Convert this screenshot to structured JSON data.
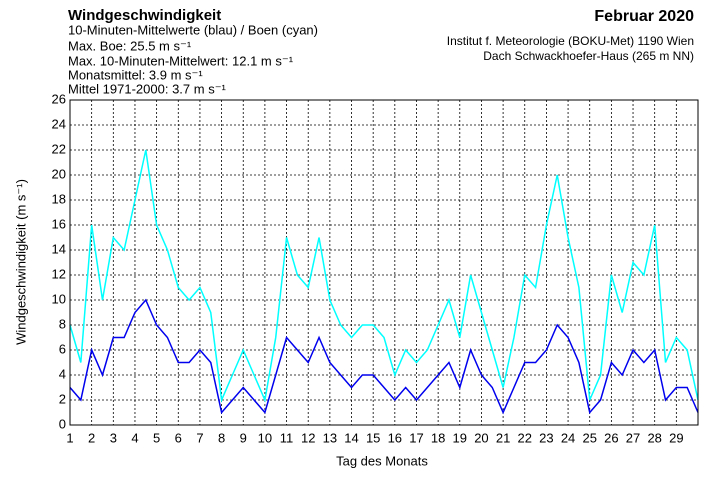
{
  "chart_data": {
    "type": "line",
    "title": "Windgeschwindigkeit",
    "subtitle": "10-Minuten-Mittelwerte (blau) / Boen (cyan)",
    "stats": [
      "Max. Boe:  25.5 m s⁻¹",
      "Max. 10-Minuten-Mittelwert:  12.1 m s⁻¹",
      "Monatsmittel:   3.9 m s⁻¹",
      "Mittel 1971-2000:   3.7 m s⁻¹"
    ],
    "period": "Februar 2020",
    "institute": "Institut f. Meteorologie (BOKU-Met) 1190 Wien",
    "station": "Dach Schwackhoefer-Haus (265 m NN)",
    "xlabel": "Tag des Monats",
    "ylabel": "Windgeschwindigkeit (m s⁻¹)",
    "x": [
      1,
      1.5,
      2,
      2.5,
      3,
      3.5,
      4,
      4.5,
      5,
      5.5,
      6,
      6.5,
      7,
      7.5,
      8,
      8.5,
      9,
      9.5,
      10,
      10.5,
      11,
      11.5,
      12,
      12.5,
      13,
      13.5,
      14,
      14.5,
      15,
      15.5,
      16,
      16.5,
      17,
      17.5,
      18,
      18.5,
      19,
      19.5,
      20,
      20.5,
      21,
      21.5,
      22,
      22.5,
      23,
      23.5,
      24,
      24.5,
      25,
      25.5,
      26,
      26.5,
      27,
      27.5,
      28,
      28.5,
      29,
      29.5,
      30
    ],
    "series": [
      {
        "name": "Boen",
        "color": "#00ffff",
        "values": [
          8,
          5,
          16,
          10,
          15,
          14,
          18,
          22,
          16,
          14,
          11,
          10,
          11,
          9,
          2,
          4,
          6,
          4,
          2,
          7,
          15,
          12,
          11,
          15,
          10,
          8,
          7,
          8,
          8,
          7,
          4,
          6,
          5,
          6,
          8,
          10,
          7,
          12,
          9,
          6,
          3,
          7,
          12,
          11,
          16,
          20,
          15,
          11,
          2,
          4,
          12,
          9,
          13,
          12,
          16,
          5,
          7,
          6,
          2
        ]
      },
      {
        "name": "10-Minuten-Mittelwerte",
        "color": "#0000ee",
        "values": [
          3,
          2,
          6,
          4,
          7,
          7,
          9,
          10,
          8,
          7,
          5,
          5,
          6,
          5,
          1,
          2,
          3,
          2,
          1,
          4,
          7,
          6,
          5,
          7,
          5,
          4,
          3,
          4,
          4,
          3,
          2,
          3,
          2,
          3,
          4,
          5,
          3,
          6,
          4,
          3,
          1,
          3,
          5,
          5,
          6,
          8,
          7,
          5,
          1,
          2,
          5,
          4,
          6,
          5,
          6,
          2,
          3,
          3,
          1
        ]
      }
    ],
    "xlim": [
      1,
      30
    ],
    "ylim": [
      0,
      26
    ],
    "xticks": [
      1,
      2,
      3,
      4,
      5,
      6,
      7,
      8,
      9,
      10,
      11,
      12,
      13,
      14,
      15,
      16,
      17,
      18,
      19,
      20,
      21,
      22,
      23,
      24,
      25,
      26,
      27,
      28,
      29
    ],
    "yticks": [
      0,
      2,
      4,
      6,
      8,
      10,
      12,
      14,
      16,
      18,
      20,
      22,
      24,
      26
    ],
    "grid": true
  }
}
